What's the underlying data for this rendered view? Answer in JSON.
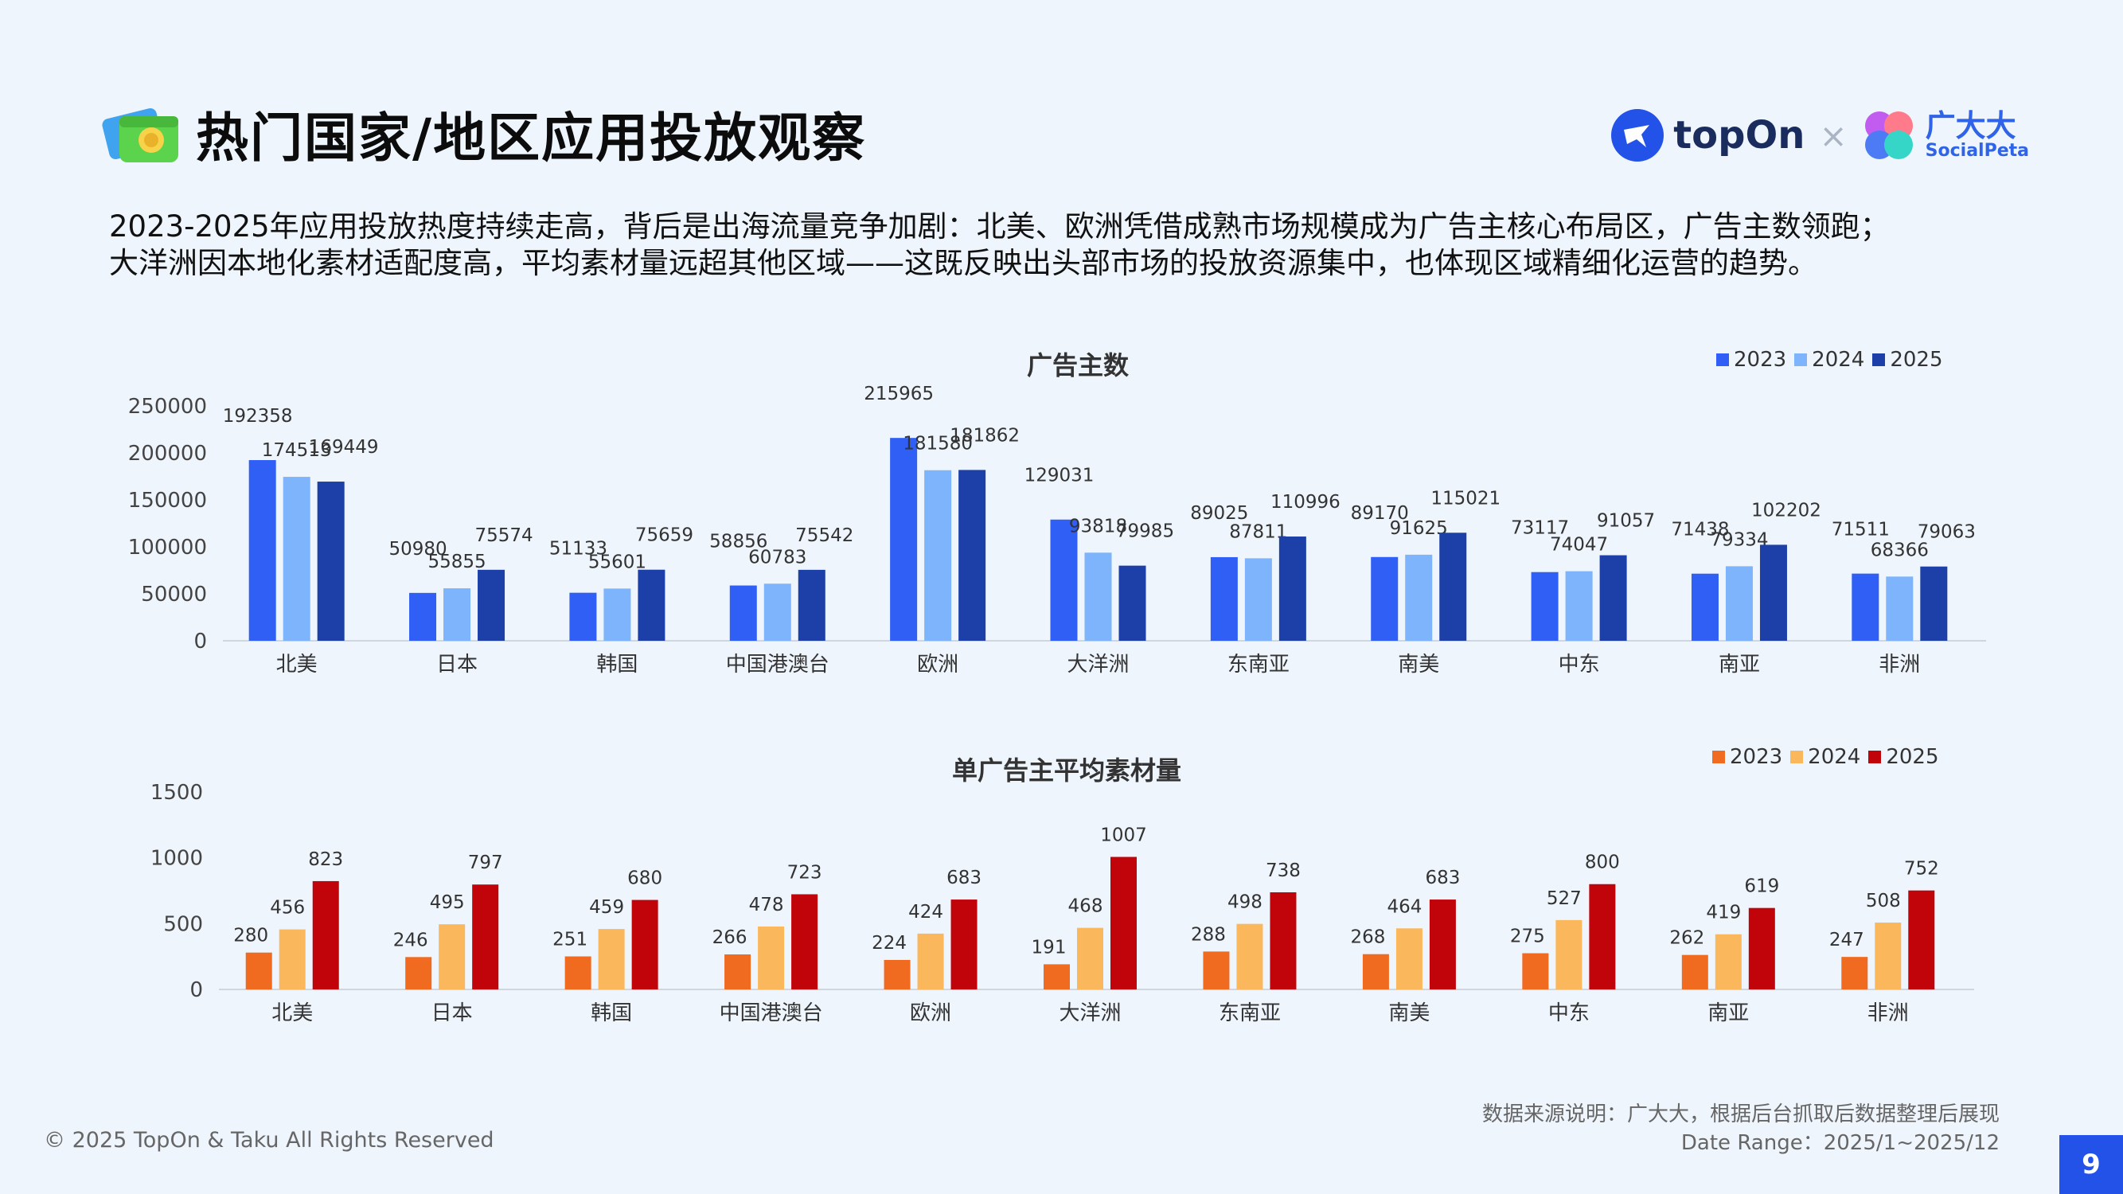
{
  "header": {
    "title": "热门国家/地区应用投放观察",
    "logo_topon": "topOn",
    "logo_times": "×",
    "logo_socialpeta_cn": "广大大",
    "logo_socialpeta_en": "SocialPeta"
  },
  "intro": {
    "line1": "2023-2025年应用投放热度持续走高，背后是出海流量竞争加剧：北美、欧洲凭借成熟市场规模成为广告主核心布局区，广告主数领跑；",
    "line2": "大洋洲因本地化素材适配度高，平均素材量远超其他区域——这既反映出头部市场的投放资源集中，也体现区域精细化运营的趋势。"
  },
  "chart_data": [
    {
      "type": "bar",
      "title": "广告主数",
      "categories": [
        "北美",
        "日本",
        "韩国",
        "中国港澳台",
        "欧洲",
        "大洋洲",
        "东南亚",
        "南美",
        "中东",
        "南亚",
        "非洲"
      ],
      "series": [
        {
          "name": "2023",
          "color": "#2f5ff5",
          "values": [
            192358,
            50980,
            51133,
            58856,
            215965,
            129031,
            89025,
            89170,
            73117,
            71438,
            71511
          ]
        },
        {
          "name": "2024",
          "color": "#7db4fb",
          "values": [
            174513,
            55855,
            55601,
            60783,
            181580,
            93818,
            87811,
            91625,
            74047,
            79334,
            68366
          ]
        },
        {
          "name": "2025",
          "color": "#1c3fa8",
          "values": [
            169449,
            75574,
            75659,
            75542,
            181862,
            79985,
            110996,
            115021,
            91057,
            102202,
            79063
          ]
        }
      ],
      "yticks": [
        0,
        50000,
        100000,
        150000,
        200000,
        250000
      ],
      "ylim": [
        0,
        250000
      ],
      "legend_position": "top-right"
    },
    {
      "type": "bar",
      "title": "单广告主平均素材量",
      "categories": [
        "北美",
        "日本",
        "韩国",
        "中国港澳台",
        "欧洲",
        "大洋洲",
        "东南亚",
        "南美",
        "中东",
        "南亚",
        "非洲"
      ],
      "series": [
        {
          "name": "2023",
          "color": "#f06a1f",
          "values": [
            280,
            246,
            251,
            266,
            224,
            191,
            288,
            268,
            275,
            262,
            247
          ]
        },
        {
          "name": "2024",
          "color": "#fbb75c",
          "values": [
            456,
            495,
            459,
            478,
            424,
            468,
            498,
            464,
            527,
            419,
            508
          ]
        },
        {
          "name": "2025",
          "color": "#c0040a",
          "values": [
            823,
            797,
            680,
            723,
            683,
            1007,
            738,
            683,
            800,
            619,
            752
          ]
        }
      ],
      "yticks": [
        0,
        500,
        1000,
        1500
      ],
      "ylim": [
        0,
        1500
      ],
      "legend_position": "top-right"
    }
  ],
  "footer": {
    "copyright": "© 2025 TopOn & Taku All Rights Reserved",
    "source": "数据来源说明：广大大，根据后台抓取后数据整理后展现",
    "date_range": "Date Range：2025/1~2025/12",
    "page_number": "9"
  }
}
